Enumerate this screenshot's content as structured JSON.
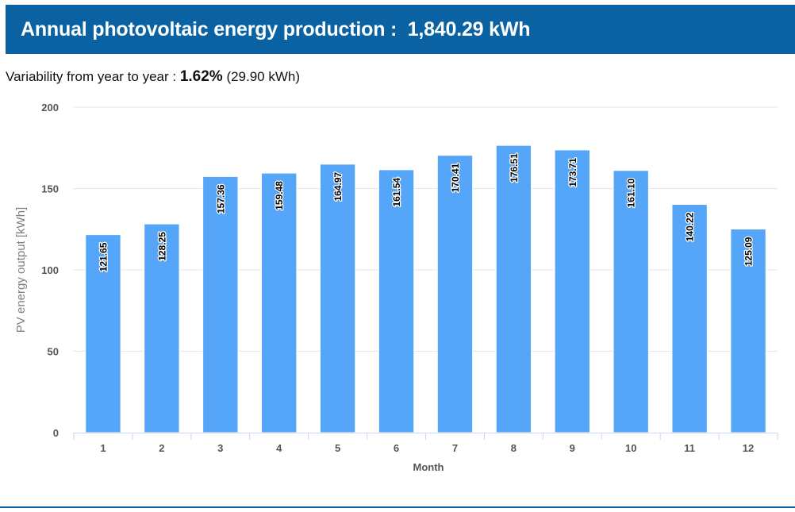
{
  "header": {
    "title": "Annual photovoltaic energy production :",
    "value": "1,840.29 kWh",
    "background": "#0a62a3"
  },
  "variability": {
    "label": "Variability from year to year :",
    "percent": "1.62%",
    "absolute": "(29.90 kWh)"
  },
  "chart_data": {
    "type": "bar",
    "categories": [
      "1",
      "2",
      "3",
      "4",
      "5",
      "6",
      "7",
      "8",
      "9",
      "10",
      "11",
      "12"
    ],
    "values": [
      121.65,
      128.25,
      157.36,
      159.48,
      164.97,
      161.54,
      170.41,
      176.51,
      173.71,
      161.1,
      140.22,
      125.09
    ],
    "data_labels": [
      "121.65",
      "128.25",
      "157.36",
      "159.48",
      "164.97",
      "161.54",
      "170.41",
      "176.51",
      "173.71",
      "161.10",
      "140.22",
      "125.09"
    ],
    "xlabel": "Month",
    "ylabel": "PV energy output [kWh]",
    "ylim": [
      0,
      200
    ],
    "yticks": [
      "0",
      "50",
      "100",
      "150",
      "200"
    ],
    "grid": true,
    "legend": "none",
    "bar_color": "#55a6f8"
  }
}
